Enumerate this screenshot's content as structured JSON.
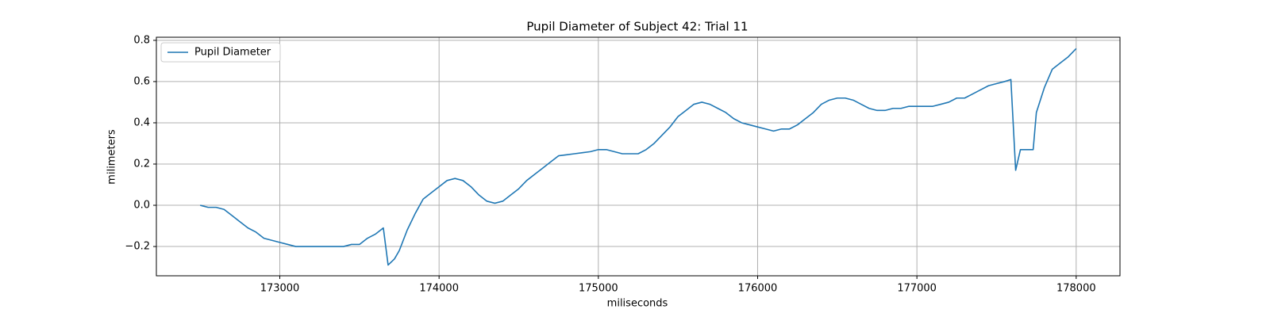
{
  "chart_data": {
    "type": "line",
    "title": "Pupil Diameter of Subject 42: Trial 11",
    "xlabel": "miliseconds",
    "ylabel": "milimeters",
    "x": [
      172500,
      172550,
      172600,
      172650,
      172700,
      172750,
      172800,
      172850,
      172900,
      172950,
      173000,
      173050,
      173100,
      173150,
      173200,
      173250,
      173300,
      173350,
      173400,
      173450,
      173500,
      173550,
      173600,
      173650,
      173680,
      173720,
      173750,
      173800,
      173850,
      173900,
      173950,
      174000,
      174050,
      174100,
      174150,
      174200,
      174250,
      174300,
      174350,
      174400,
      174450,
      174500,
      174550,
      174600,
      174650,
      174700,
      174750,
      174800,
      174850,
      174900,
      174950,
      175000,
      175050,
      175100,
      175150,
      175200,
      175250,
      175300,
      175350,
      175400,
      175450,
      175500,
      175550,
      175600,
      175650,
      175700,
      175750,
      175800,
      175850,
      175900,
      175950,
      176000,
      176050,
      176100,
      176150,
      176200,
      176250,
      176300,
      176350,
      176400,
      176450,
      176500,
      176550,
      176600,
      176650,
      176700,
      176750,
      176800,
      176850,
      176900,
      176950,
      177000,
      177050,
      177100,
      177150,
      177200,
      177250,
      177300,
      177350,
      177400,
      177450,
      177500,
      177550,
      177590,
      177620,
      177650,
      177700,
      177730,
      177750,
      177800,
      177850,
      177900,
      177950,
      178000
    ],
    "series": [
      {
        "name": "Pupil Diameter",
        "color": "#1f77b4",
        "values": [
          0.0,
          -0.01,
          -0.01,
          -0.02,
          -0.05,
          -0.08,
          -0.11,
          -0.13,
          -0.16,
          -0.17,
          -0.18,
          -0.19,
          -0.2,
          -0.2,
          -0.2,
          -0.2,
          -0.2,
          -0.2,
          -0.2,
          -0.19,
          -0.19,
          -0.16,
          -0.14,
          -0.11,
          -0.29,
          -0.26,
          -0.22,
          -0.12,
          -0.04,
          0.03,
          0.06,
          0.09,
          0.12,
          0.13,
          0.12,
          0.09,
          0.05,
          0.02,
          0.01,
          0.02,
          0.05,
          0.08,
          0.12,
          0.15,
          0.18,
          0.21,
          0.24,
          0.245,
          0.25,
          0.255,
          0.26,
          0.27,
          0.27,
          0.26,
          0.25,
          0.25,
          0.25,
          0.27,
          0.3,
          0.34,
          0.38,
          0.43,
          0.46,
          0.49,
          0.5,
          0.49,
          0.47,
          0.45,
          0.42,
          0.4,
          0.39,
          0.38,
          0.37,
          0.36,
          0.37,
          0.37,
          0.39,
          0.42,
          0.45,
          0.49,
          0.51,
          0.52,
          0.52,
          0.51,
          0.49,
          0.47,
          0.46,
          0.46,
          0.47,
          0.47,
          0.48,
          0.48,
          0.48,
          0.48,
          0.49,
          0.5,
          0.52,
          0.52,
          0.54,
          0.56,
          0.58,
          0.59,
          0.6,
          0.61,
          0.17,
          0.27,
          0.27,
          0.27,
          0.45,
          0.57,
          0.66,
          0.69,
          0.72,
          0.76
        ]
      }
    ],
    "xlim": [
      172225,
      178275
    ],
    "ylim": [
      -0.342,
      0.815
    ],
    "xticks": [
      173000,
      174000,
      175000,
      176000,
      177000,
      178000
    ],
    "yticks": [
      {
        "value": -0.2,
        "label": "−0.2"
      },
      {
        "value": 0,
        "label": "0.0"
      },
      {
        "value": 0.2,
        "label": "0.2"
      },
      {
        "value": 0.4,
        "label": "0.4"
      },
      {
        "value": 0.6,
        "label": "0.6"
      },
      {
        "value": 0.8,
        "label": "0.8"
      }
    ],
    "grid": true,
    "legend": "upper left"
  }
}
